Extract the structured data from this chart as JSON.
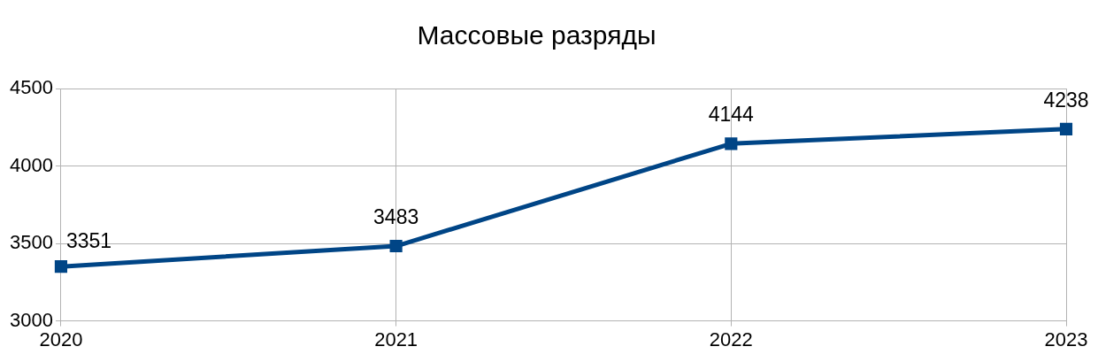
{
  "chart_data": {
    "type": "line",
    "title": "Массовые разряды",
    "categories": [
      "2020",
      "2021",
      "2022",
      "2023"
    ],
    "series": [
      {
        "color": "#004586",
        "values": [
          3351,
          3483,
          4144,
          4238
        ]
      }
    ],
    "ylim": [
      3000,
      4500
    ],
    "yticks": [
      3000,
      3500,
      4000,
      4500
    ],
    "grid": true,
    "legend": false,
    "marker": "square",
    "line_style": "solid",
    "data_labels": true
  }
}
